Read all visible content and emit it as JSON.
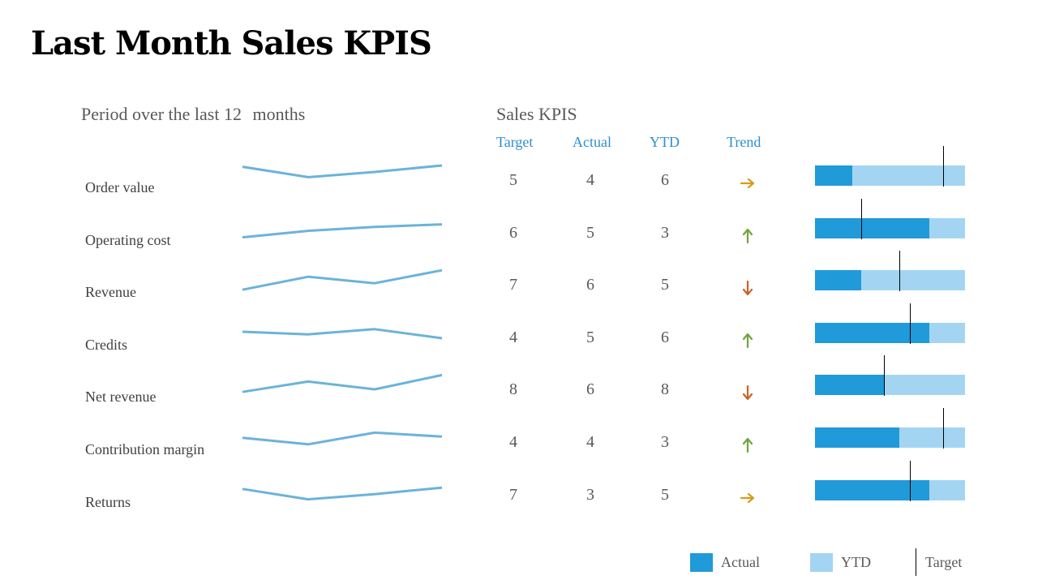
{
  "title": "Last Month Sales KPIS",
  "left_heading": "Period over the last 12",
  "left_heading_suffix": "months",
  "right_heading": "Sales KPIS",
  "columns": {
    "target": "Target",
    "actual": "Actual",
    "ytd": "YTD",
    "trend": "Trend"
  },
  "legend": {
    "actual": "Actual",
    "ytd": "YTD",
    "target": "Target"
  },
  "colors": {
    "actual": "#209ad9",
    "ytd": "#a3d5f3",
    "target": "#000000",
    "sparkline": "#6bb3da",
    "trend_flat": "#d99a1c",
    "trend_up": "#6fa53b",
    "trend_down": "#c9622b",
    "header": "#2e8fd1"
  },
  "chart_data": {
    "type": "table",
    "bullet_scale_max": 8,
    "rows": [
      {
        "label": "Order value",
        "target": 5,
        "actual": 4,
        "ytd": 6,
        "trend": "flat",
        "trend_icon": "arrow-right-icon",
        "spark": [
          3.9,
          3.1,
          3.5,
          4.0
        ]
      },
      {
        "label": "Operating cost",
        "target": 6,
        "actual": 5,
        "ytd": 3,
        "trend": "up",
        "trend_icon": "arrow-up-icon",
        "spark": [
          2.5,
          3.0,
          3.3,
          3.5
        ]
      },
      {
        "label": "Revenue",
        "target": 7,
        "actual": 6,
        "ytd": 5,
        "trend": "down",
        "trend_icon": "arrow-down-icon",
        "spark": [
          2.5,
          3.5,
          3.0,
          4.0
        ]
      },
      {
        "label": "Credits",
        "target": 4,
        "actual": 5,
        "ytd": 6,
        "trend": "up",
        "trend_icon": "arrow-up-icon",
        "spark": [
          3.3,
          3.1,
          3.5,
          2.8
        ]
      },
      {
        "label": "Net revenue",
        "target": 8,
        "actual": 6,
        "ytd": 8,
        "trend": "down",
        "trend_icon": "arrow-down-icon",
        "spark": [
          2.7,
          3.5,
          2.9,
          4.0
        ]
      },
      {
        "label": "Contribution margin",
        "target": 4,
        "actual": 4,
        "ytd": 3,
        "trend": "up",
        "trend_icon": "arrow-up-icon",
        "spark": [
          3.2,
          2.7,
          3.6,
          3.3
        ]
      },
      {
        "label": "Returns",
        "target": 7,
        "actual": 3,
        "ytd": 5,
        "trend": "flat",
        "trend_icon": "arrow-right-icon",
        "spark": [
          3.3,
          2.5,
          2.9,
          3.4
        ]
      }
    ]
  }
}
